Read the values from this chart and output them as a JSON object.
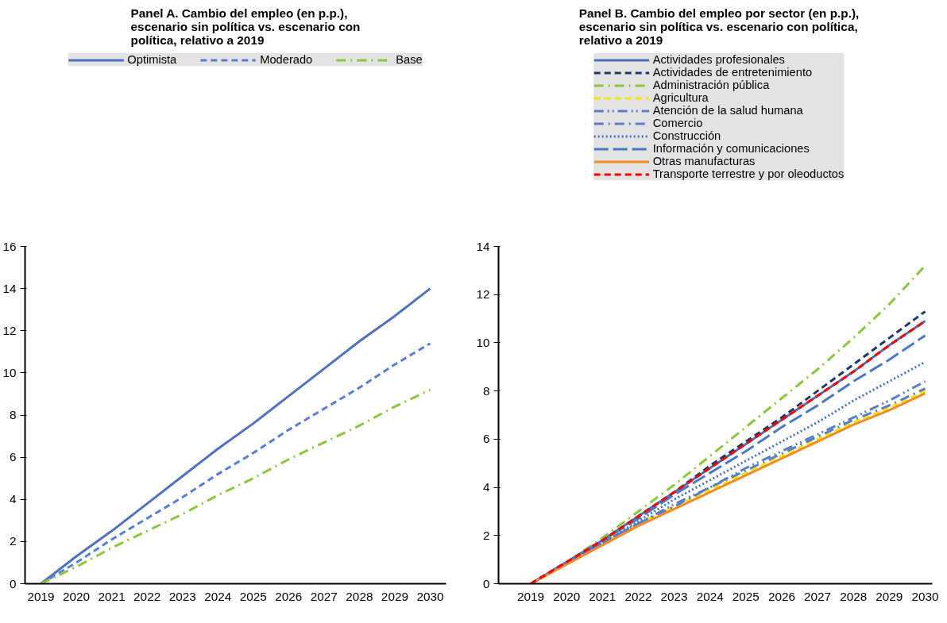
{
  "chart_data": [
    {
      "type": "line",
      "title": "Panel A. Cambio del empleo (en p.p.),\nescenario sin política vs. escenario con\npolítica, relativo a 2019",
      "x": [
        2019,
        2020,
        2021,
        2022,
        2023,
        2024,
        2025,
        2026,
        2027,
        2028,
        2029,
        2030
      ],
      "xlim": [
        2018.55,
        2030.45
      ],
      "xticks": [
        2019,
        2020,
        2021,
        2022,
        2023,
        2024,
        2025,
        2026,
        2027,
        2028,
        2029,
        2030
      ],
      "ylim": [
        0,
        16
      ],
      "yticks": [
        0,
        2,
        4,
        6,
        8,
        10,
        12,
        14,
        16
      ],
      "grid": false,
      "legend": "top",
      "series": [
        {
          "name": "Optimista",
          "color": "#4f71be",
          "line_style": "solid",
          "values": [
            0,
            1.3,
            2.5,
            3.8,
            5.1,
            6.4,
            7.6,
            8.9,
            10.2,
            11.5,
            12.7,
            14.0
          ]
        },
        {
          "name": "Moderado",
          "color": "#5a7fd1",
          "line_style": "dashed",
          "values": [
            0,
            1.0,
            2.1,
            3.1,
            4.1,
            5.2,
            6.2,
            7.3,
            8.3,
            9.3,
            10.4,
            11.4
          ]
        },
        {
          "name": "Base",
          "color": "#8cc63f",
          "line_style": "dashdot",
          "values": [
            0,
            0.8,
            1.7,
            2.5,
            3.3,
            4.2,
            5.0,
            5.9,
            6.7,
            7.5,
            8.4,
            9.2
          ]
        }
      ]
    },
    {
      "type": "line",
      "title": "Panel B. Cambio del empleo por sector (en p.p.),\nescenario sin política vs. escenario con política,\nrelativo a 2019",
      "x": [
        2019,
        2020,
        2021,
        2022,
        2023,
        2024,
        2025,
        2026,
        2027,
        2028,
        2029,
        2030
      ],
      "xlim": [
        2018.1,
        2030.2
      ],
      "xticks": [
        2019,
        2020,
        2021,
        2022,
        2023,
        2024,
        2025,
        2026,
        2027,
        2028,
        2029,
        2030
      ],
      "ylim": [
        0,
        14
      ],
      "yticks": [
        0,
        2,
        4,
        6,
        8,
        10,
        12,
        14
      ],
      "grid": false,
      "legend": "top",
      "series": [
        {
          "name": "Actividades profesionales",
          "color": "#4a72b8",
          "line_style": "solid",
          "values": [
            0,
            0.9,
            1.8,
            2.8,
            3.8,
            4.8,
            5.8,
            6.8,
            7.8,
            8.8,
            9.9,
            10.9
          ]
        },
        {
          "name": "Actividades de entretenimiento",
          "color": "#1f3864",
          "line_style": "dashed",
          "values": [
            0,
            0.9,
            1.8,
            2.8,
            3.8,
            4.9,
            5.9,
            6.9,
            8.0,
            9.1,
            10.2,
            11.3
          ]
        },
        {
          "name": "Administración pública",
          "color": "#8cc63f",
          "line_style": "dashdot",
          "values": [
            0,
            0.9,
            1.9,
            3.0,
            4.1,
            5.3,
            6.5,
            7.7,
            8.9,
            10.2,
            11.6,
            13.2
          ]
        },
        {
          "name": "Agricultura",
          "color": "#f5e600",
          "line_style": "dashed",
          "values": [
            0,
            0.85,
            1.7,
            2.5,
            3.2,
            3.9,
            4.6,
            5.3,
            6.0,
            6.7,
            7.3,
            8.0
          ]
        },
        {
          "name": "Atención de la salud humana",
          "color": "#5a7fc4",
          "line_style": "dashdotdot",
          "values": [
            0,
            0.85,
            1.7,
            2.5,
            3.3,
            4.0,
            4.8,
            5.5,
            6.2,
            6.9,
            7.6,
            8.4
          ]
        },
        {
          "name": "Comercio",
          "color": "#5a7fc4",
          "line_style": "dashdot",
          "values": [
            0,
            0.85,
            1.7,
            2.5,
            3.2,
            4.0,
            4.7,
            5.4,
            6.1,
            6.8,
            7.4,
            8.1
          ]
        },
        {
          "name": "Construcción",
          "color": "#4a6fc0",
          "line_style": "dotted",
          "values": [
            0,
            0.85,
            1.7,
            2.6,
            3.5,
            4.3,
            5.1,
            5.9,
            6.7,
            7.6,
            8.4,
            9.2
          ]
        },
        {
          "name": "Información y comunicaciones",
          "color": "#4a79c4",
          "line_style": "longdash",
          "values": [
            0,
            0.9,
            1.8,
            2.7,
            3.7,
            4.6,
            5.5,
            6.5,
            7.4,
            8.4,
            9.3,
            10.3
          ]
        },
        {
          "name": "Otras manufacturas",
          "color": "#f28c28",
          "line_style": "solid",
          "values": [
            0,
            0.8,
            1.6,
            2.4,
            3.1,
            3.8,
            4.5,
            5.2,
            5.9,
            6.6,
            7.2,
            7.9
          ]
        },
        {
          "name": "Transporte terrestre y por oleoductos",
          "color": "#ff0000",
          "line_style": "dashed",
          "values": [
            0,
            0.9,
            1.8,
            2.8,
            3.8,
            4.8,
            5.8,
            6.8,
            7.8,
            8.8,
            9.9,
            10.9
          ]
        }
      ]
    }
  ]
}
